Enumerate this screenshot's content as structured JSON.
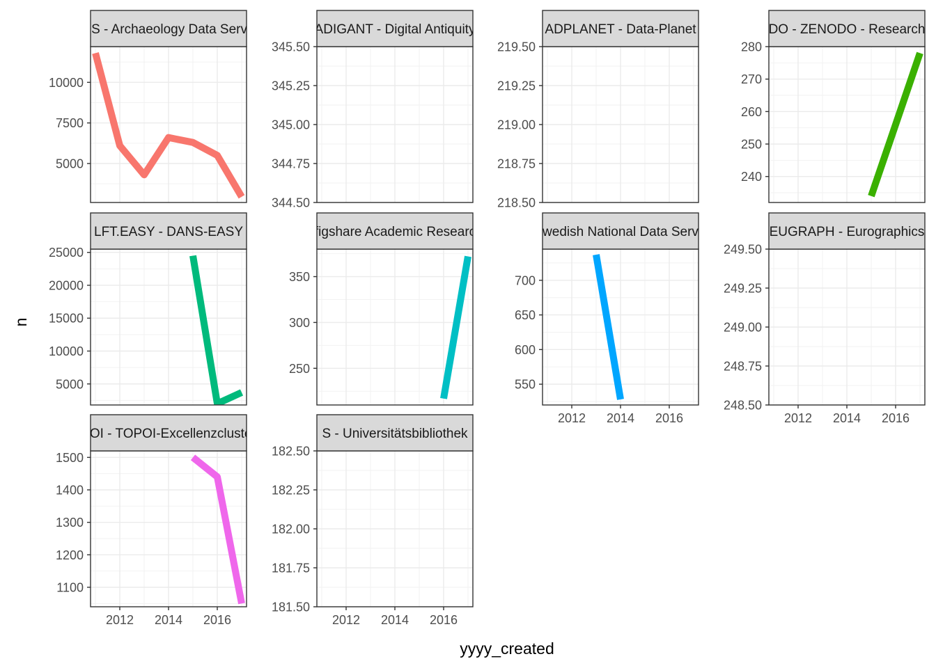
{
  "chart_data": {
    "type": "line",
    "xlabel": "yyyy_created",
    "ylabel": "n",
    "x_ticks": [
      2012,
      2014,
      2016
    ],
    "xlim": [
      2010.8,
      2017.2
    ],
    "grid": true,
    "legend": "none",
    "panels": [
      {
        "strip": "ADS - Archaeology Data Service",
        "color": "#F8766D",
        "ylim": [
          2600,
          12200
        ],
        "y_ticks": [
          5000,
          7500,
          10000
        ],
        "x": [
          2011,
          2012,
          2013,
          2014,
          2015,
          2016,
          2017
        ],
        "y": [
          11800,
          6100,
          4300,
          6600,
          6300,
          5500,
          2950
        ]
      },
      {
        "strip": "ADIGANT - Digital Antiquity",
        "color": "#DE8C00",
        "ylim": [
          344.5,
          345.5
        ],
        "y_ticks": [
          344.5,
          344.75,
          345.0,
          345.25,
          345.5
        ],
        "x": [],
        "y": []
      },
      {
        "strip": "ADPLANET - Data-Planet",
        "color": "#B79F00",
        "ylim": [
          218.5,
          219.5
        ],
        "y_ticks": [
          218.5,
          218.75,
          219.0,
          219.25,
          219.5
        ],
        "x": [],
        "y": []
      },
      {
        "strip": "DO - ZENODO - Research",
        "color": "#3AB000",
        "ylim": [
          232,
          280
        ],
        "y_ticks": [
          240,
          250,
          260,
          270,
          280
        ],
        "x": [
          2015,
          2017
        ],
        "y": [
          234,
          278
        ]
      },
      {
        "strip": "LFT.EASY - DANS-EASY",
        "color": "#00BA7C",
        "ylim": [
          1800,
          25500
        ],
        "y_ticks": [
          5000,
          10000,
          15000,
          20000,
          25000
        ],
        "x": [
          2015,
          2016,
          2017
        ],
        "y": [
          24500,
          2000,
          3700
        ]
      },
      {
        "strip": "- figshare Academic Research",
        "color": "#00BFC4",
        "ylim": [
          210,
          380
        ],
        "y_ticks": [
          250,
          300,
          350
        ],
        "x": [
          2016,
          2017
        ],
        "y": [
          217,
          372
        ]
      },
      {
        "strip": "- Swedish National Data Service",
        "color": "#00A6FF",
        "ylim": [
          520,
          745
        ],
        "y_ticks": [
          550,
          600,
          650,
          700
        ],
        "x": [
          2013,
          2014
        ],
        "y": [
          737,
          528
        ]
      },
      {
        "strip": "EUGRAPH - Eurographics",
        "color": "#B385FF",
        "ylim": [
          248.5,
          249.5
        ],
        "y_ticks": [
          248.5,
          248.75,
          249.0,
          249.25,
          249.5
        ],
        "x": [],
        "y": []
      },
      {
        "strip": "POI - TOPOI-Excellenzcluster",
        "color": "#EF67EB",
        "ylim": [
          1040,
          1520
        ],
        "y_ticks": [
          1100,
          1200,
          1300,
          1400,
          1500
        ],
        "x": [
          2015,
          2016,
          2017
        ],
        "y": [
          1500,
          1440,
          1050
        ]
      },
      {
        "strip": "S - Universitätsbibliothek",
        "color": "#FF63B6",
        "ylim": [
          181.5,
          182.5
        ],
        "y_ticks": [
          181.5,
          181.75,
          182.0,
          182.25,
          182.5
        ],
        "x": [],
        "y": []
      }
    ]
  }
}
